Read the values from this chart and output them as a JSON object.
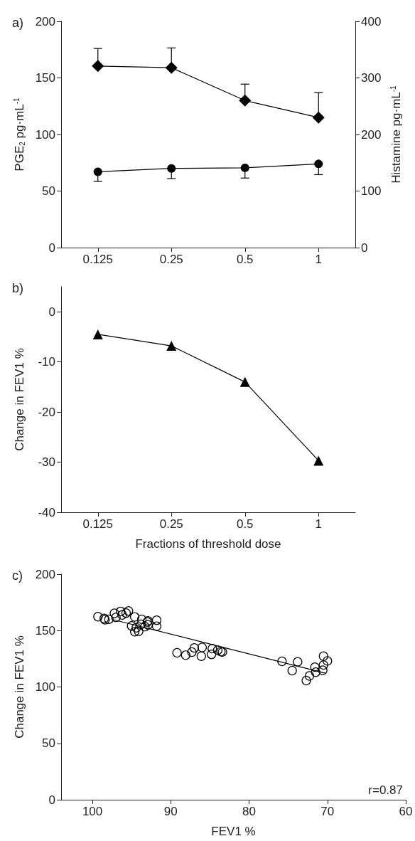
{
  "chart_data": [
    {
      "type": "line",
      "title": "a)",
      "ylabel": "PGE$_{2}$ pg·mL$^{-1}$",
      "y2label": "Histamine pg·mL$^{-1}$",
      "categories": [
        "0.125",
        "0.25",
        "0.5",
        "1"
      ],
      "ylim": [
        0,
        200
      ],
      "yticks": [
        0,
        50,
        100,
        150,
        200
      ],
      "y2lim": [
        0,
        400
      ],
      "y2ticks": [
        0,
        100,
        200,
        300,
        400
      ],
      "series": [
        {
          "color": "#000000",
          "marker": "diamond",
          "values": [
            160.5,
            159,
            130,
            115
          ],
          "errors": [
            [
              160.5,
              176
            ],
            [
              159,
              176.5
            ],
            [
              130,
              144.5
            ],
            [
              115,
              137
            ]
          ]
        },
        {
          "color": "#000000",
          "marker": "circle",
          "values": [
            67,
            70,
            70.5,
            74
          ],
          "errors": [
            [
              58.5,
              67
            ],
            [
              61,
              70
            ],
            [
              61.5,
              70.5
            ],
            [
              64.5,
              74
            ]
          ]
        }
      ]
    },
    {
      "type": "line",
      "title": "b)",
      "xlabel": "Fractions of threshold dose",
      "ylabel": "Change in FEV1 %",
      "categories": [
        "0.125",
        "0.25",
        "0.5",
        "1"
      ],
      "ylim": [
        -40,
        5
      ],
      "yticks": [
        -40,
        -30,
        -20,
        -10,
        0
      ],
      "series": [
        {
          "color": "#000000",
          "marker": "triangle",
          "values": [
            -4.5,
            -6.8,
            -14,
            -29.7
          ]
        }
      ]
    },
    {
      "type": "scatter",
      "title": "c)",
      "xlabel": "FEV1 %",
      "ylabel": "Change in FEV1 %",
      "xlim": [
        104,
        60
      ],
      "xticks": [
        100,
        90,
        80,
        70,
        60
      ],
      "ylim": [
        0,
        200
      ],
      "yticks": [
        0,
        50,
        100,
        150,
        200
      ],
      "annotations": [
        "r=0.87"
      ],
      "series": [
        {
          "color": "#000000",
          "marker": "circle",
          "x": [
            99.3,
            98.5,
            98.4,
            97.9,
            97.2,
            97.0,
            96.4,
            96.2,
            95.7,
            95.4,
            94.6,
            95.0,
            94.6,
            94.4,
            94.1,
            93.8,
            93.7,
            93.3,
            93.0,
            92.9,
            92.9,
            91.8,
            91.8,
            89.2,
            88.1,
            87.3,
            87.0,
            86.1,
            86.0,
            84.8,
            84.7,
            84.0,
            83.6,
            83.4,
            75.8,
            74.5,
            73.8,
            72.7,
            72.3,
            71.6,
            71.5,
            70.5,
            70.5,
            70.6,
            70.0
          ],
          "values": [
            162.3,
            160.7,
            159.6,
            160,
            165.3,
            161.7,
            167,
            163.9,
            165.5,
            167.4,
            162.1,
            154.1,
            149,
            152.5,
            149.4,
            155.5,
            160,
            153.5,
            157.6,
            155.1,
            158.6,
            159.2,
            153.9,
            130.3,
            128.2,
            130.9,
            134.6,
            127.3,
            135.0,
            128.9,
            134,
            132.6,
            131.4,
            131,
            122.7,
            114.5,
            122.3,
            105.7,
            109.8,
            117.6,
            113.1,
            127.3,
            119.5,
            114.8,
            123.1
          ]
        },
        {
          "type": "line",
          "color": "#000000",
          "marker": "none",
          "x": [
            97.4,
            70.2
          ],
          "values": [
            159.8,
            112.1
          ]
        }
      ]
    }
  ]
}
